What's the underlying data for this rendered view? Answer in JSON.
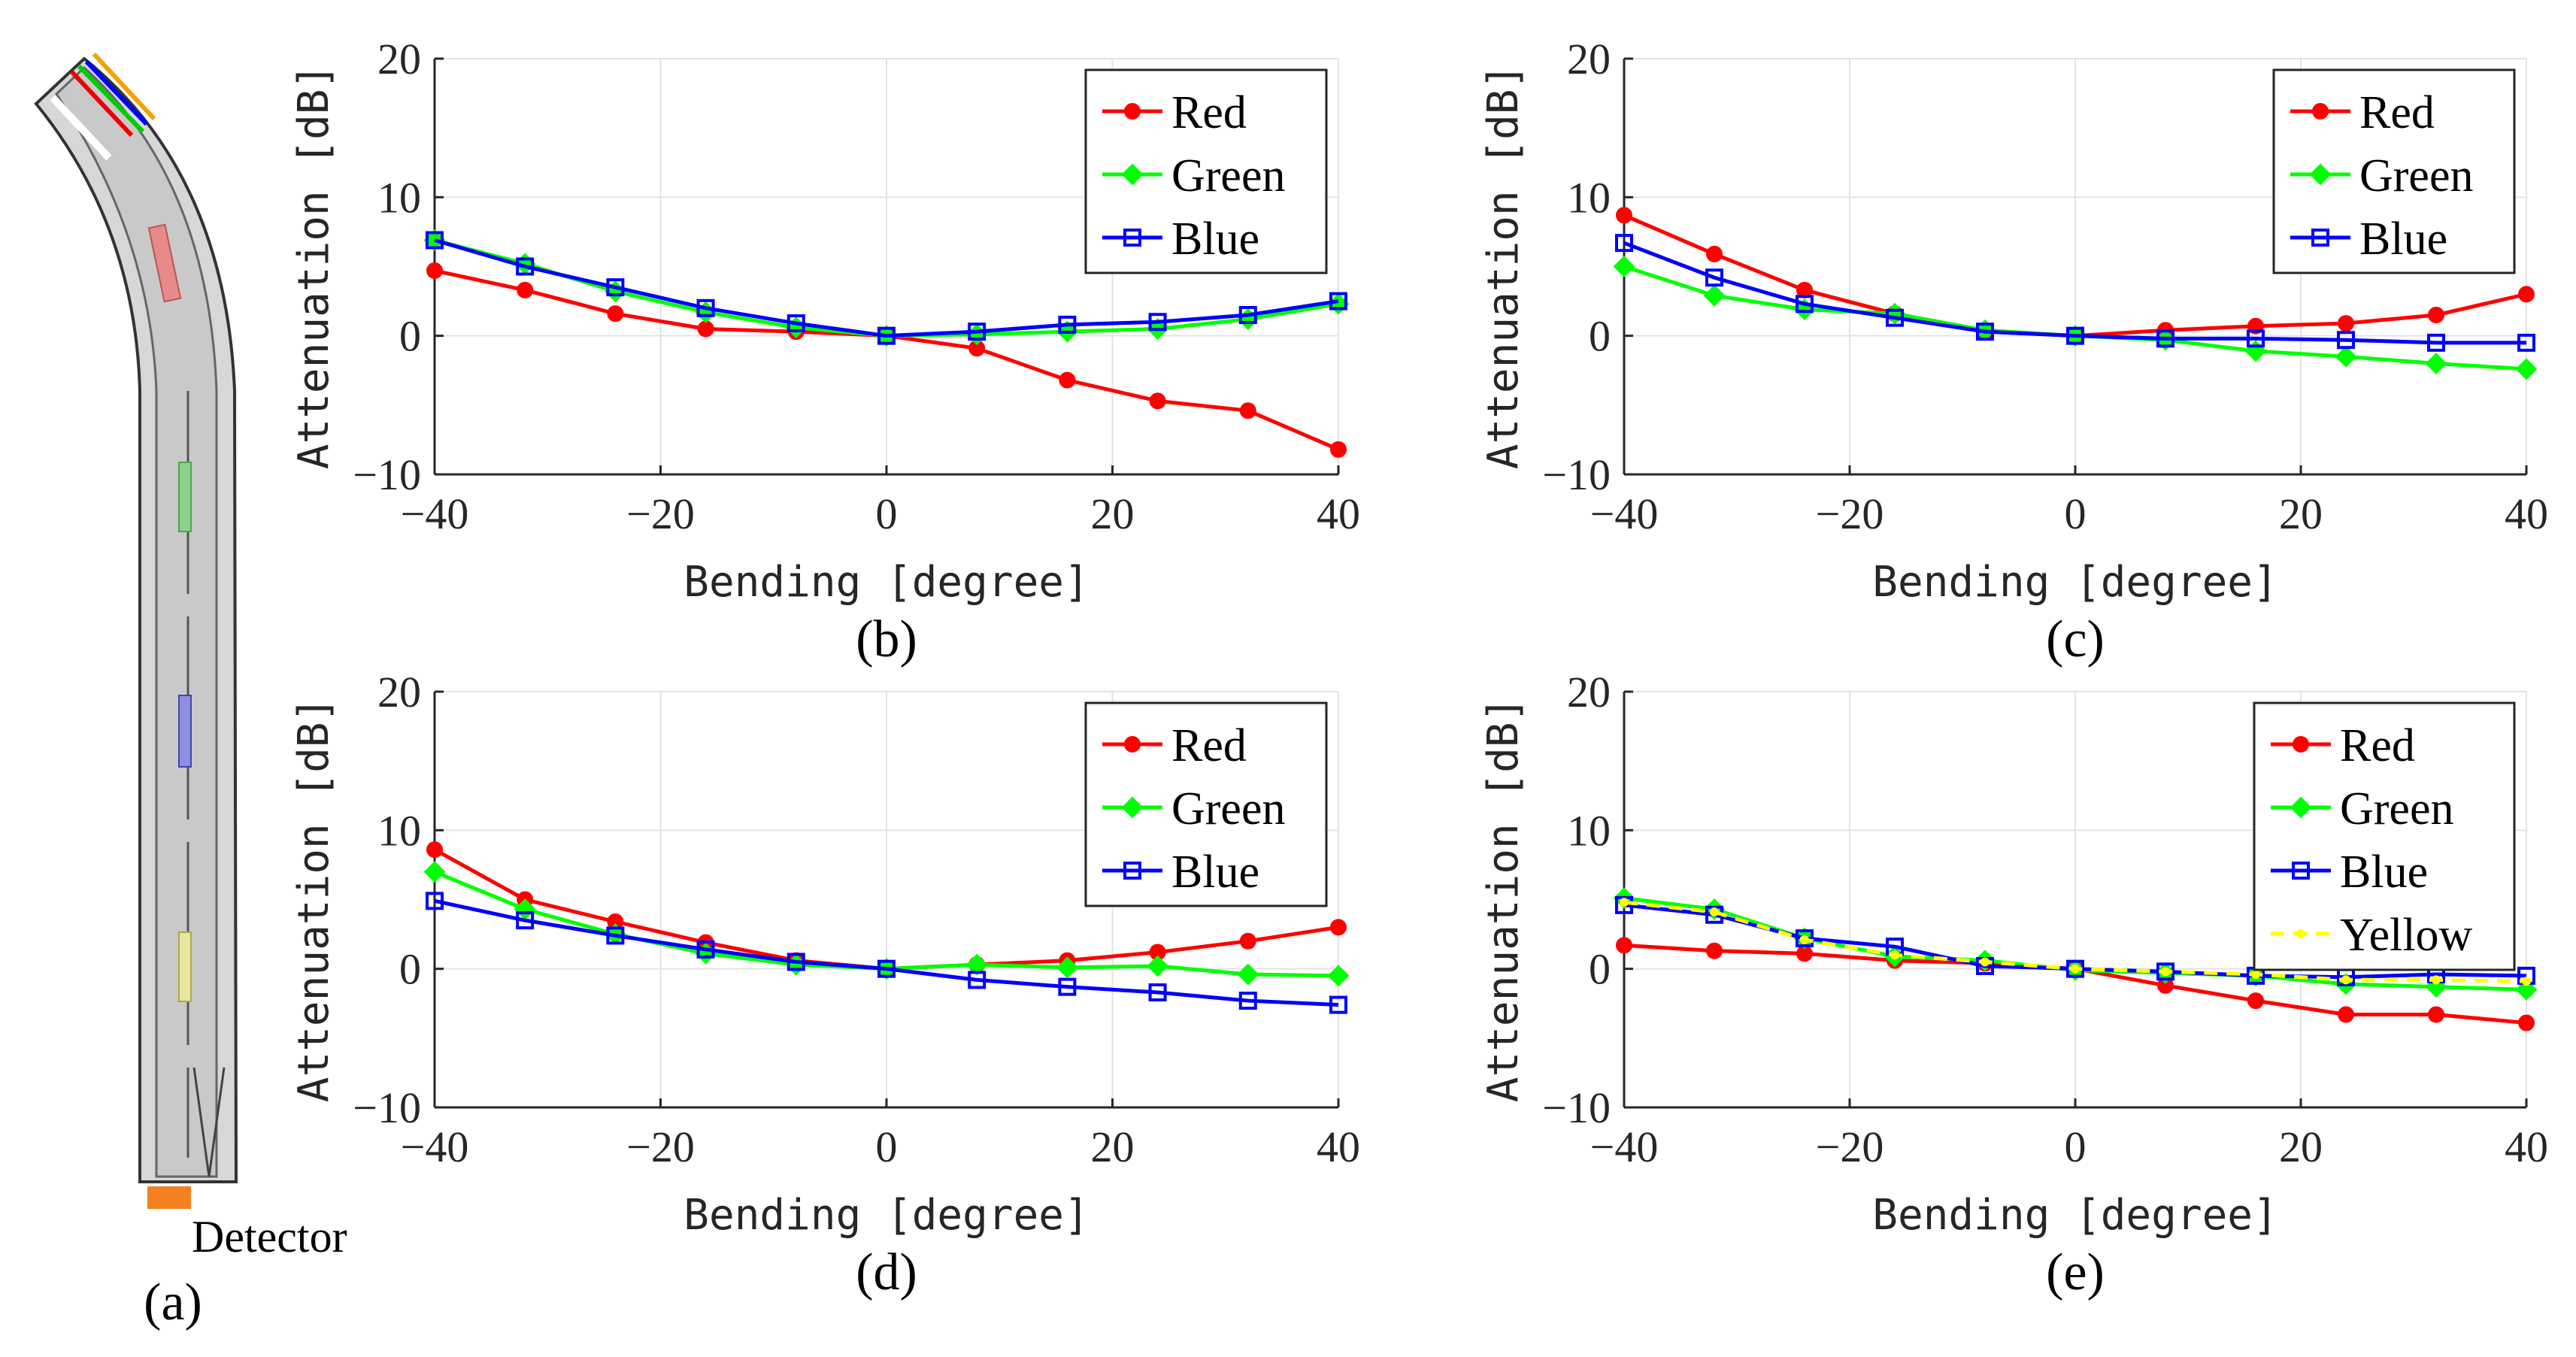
{
  "figure": {
    "detector_label": "Detector",
    "panel_a_label": "(a)"
  },
  "colors": {
    "Red": "#ff0000",
    "Green": "#00ff00",
    "Blue": "#0000ff",
    "Yellow": "#ffff00",
    "detector": "#f58020"
  },
  "chart_data": [
    {
      "id": "b",
      "type": "line",
      "panel_label": "(b)",
      "xlabel": "Bending [degree]",
      "ylabel": "Attenuation [dB]",
      "xlim": [
        -40,
        40
      ],
      "ylim": [
        -10,
        20
      ],
      "xticks": [
        -40,
        -20,
        0,
        20,
        40
      ],
      "yticks": [
        -10,
        0,
        10,
        20
      ],
      "grid": true,
      "legend_position": "top-right",
      "x": [
        -40,
        -32,
        -24,
        -16,
        -8,
        0,
        8,
        16,
        24,
        32,
        40
      ],
      "series": [
        {
          "name": "Red",
          "marker": "circle",
          "values": [
            4.7,
            3.3,
            1.6,
            0.5,
            0.3,
            0,
            -0.9,
            -3.2,
            -4.7,
            -5.4,
            -8.2
          ]
        },
        {
          "name": "Green",
          "marker": "diamond",
          "values": [
            6.9,
            5.2,
            3.2,
            1.7,
            0.6,
            0,
            0.1,
            0.3,
            0.5,
            1.2,
            2.3
          ]
        },
        {
          "name": "Blue",
          "marker": "square",
          "values": [
            6.9,
            5.0,
            3.5,
            2.0,
            0.9,
            0,
            0.3,
            0.8,
            1.0,
            1.5,
            2.5
          ]
        }
      ]
    },
    {
      "id": "c",
      "type": "line",
      "panel_label": "(c)",
      "xlabel": "Bending [degree]",
      "ylabel": "Attenuation [dB]",
      "xlim": [
        -40,
        40
      ],
      "ylim": [
        -10,
        20
      ],
      "xticks": [
        -40,
        -20,
        0,
        20,
        40
      ],
      "yticks": [
        -10,
        0,
        10,
        20
      ],
      "grid": true,
      "legend_position": "top-right",
      "x": [
        -40,
        -32,
        -24,
        -16,
        -8,
        0,
        8,
        16,
        24,
        32,
        40
      ],
      "series": [
        {
          "name": "Red",
          "marker": "circle",
          "values": [
            8.7,
            5.9,
            3.3,
            1.6,
            0.3,
            0,
            0.4,
            0.7,
            0.9,
            1.5,
            3.0
          ]
        },
        {
          "name": "Green",
          "marker": "diamond",
          "values": [
            5.0,
            2.9,
            1.9,
            1.6,
            0.4,
            0,
            -0.3,
            -1.1,
            -1.5,
            -2.0,
            -2.4
          ]
        },
        {
          "name": "Blue",
          "marker": "square",
          "values": [
            6.7,
            4.2,
            2.3,
            1.3,
            0.3,
            0,
            -0.2,
            -0.2,
            -0.3,
            -0.5,
            -0.5
          ]
        }
      ]
    },
    {
      "id": "d",
      "type": "line",
      "panel_label": "(d)",
      "xlabel": "Bending [degree]",
      "ylabel": "Attenuation [dB]",
      "xlim": [
        -40,
        40
      ],
      "ylim": [
        -10,
        20
      ],
      "xticks": [
        -40,
        -20,
        0,
        20,
        40
      ],
      "yticks": [
        -10,
        0,
        10,
        20
      ],
      "grid": true,
      "legend_position": "top-right",
      "x": [
        -40,
        -32,
        -24,
        -16,
        -8,
        0,
        8,
        16,
        24,
        32,
        40
      ],
      "series": [
        {
          "name": "Red",
          "marker": "circle",
          "values": [
            8.6,
            5.0,
            3.4,
            1.9,
            0.6,
            0,
            0.3,
            0.6,
            1.2,
            2.0,
            3.0
          ]
        },
        {
          "name": "Green",
          "marker": "diamond",
          "values": [
            7.0,
            4.3,
            2.5,
            1.1,
            0.3,
            0,
            0.3,
            0.1,
            0.2,
            -0.4,
            -0.5
          ]
        },
        {
          "name": "Blue",
          "marker": "square",
          "values": [
            4.9,
            3.5,
            2.4,
            1.4,
            0.5,
            0,
            -0.8,
            -1.3,
            -1.7,
            -2.3,
            -2.6
          ]
        }
      ]
    },
    {
      "id": "e",
      "type": "line",
      "panel_label": "(e)",
      "xlabel": "Bending [degree]",
      "ylabel": "Attenuation [dB]",
      "xlim": [
        -40,
        40
      ],
      "ylim": [
        -10,
        20
      ],
      "xticks": [
        -40,
        -20,
        0,
        20,
        40
      ],
      "yticks": [
        -10,
        0,
        10,
        20
      ],
      "grid": true,
      "legend_position": "top-right",
      "x": [
        -40,
        -32,
        -24,
        -16,
        -8,
        0,
        8,
        16,
        24,
        32,
        40
      ],
      "series": [
        {
          "name": "Red",
          "marker": "circle",
          "values": [
            1.7,
            1.3,
            1.1,
            0.6,
            0.4,
            0,
            -1.2,
            -2.3,
            -3.3,
            -3.3,
            -3.9
          ]
        },
        {
          "name": "Green",
          "marker": "diamond",
          "values": [
            5.1,
            4.3,
            2.2,
            0.9,
            0.6,
            -0.1,
            -0.3,
            -0.5,
            -1.1,
            -1.3,
            -1.5
          ]
        },
        {
          "name": "Blue",
          "marker": "square",
          "values": [
            4.6,
            3.9,
            2.2,
            1.6,
            0.2,
            0,
            -0.2,
            -0.5,
            -0.6,
            -0.4,
            -0.5
          ]
        },
        {
          "name": "Yellow",
          "marker": "dot",
          "dashed": true,
          "values": [
            4.8,
            4.1,
            2.1,
            1.0,
            0.5,
            0,
            -0.2,
            -0.4,
            -0.8,
            -0.8,
            -0.9
          ]
        }
      ]
    }
  ]
}
